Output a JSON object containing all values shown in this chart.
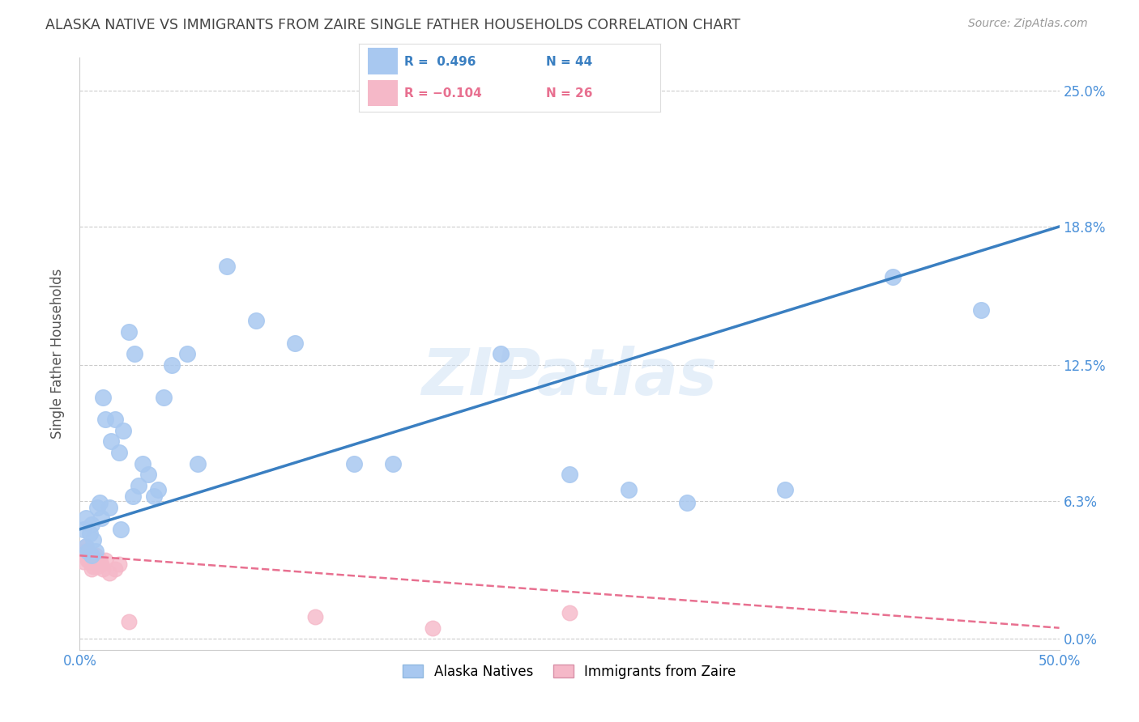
{
  "title": "ALASKA NATIVE VS IMMIGRANTS FROM ZAIRE SINGLE FATHER HOUSEHOLDS CORRELATION CHART",
  "source": "Source: ZipAtlas.com",
  "ylabel": "Single Father Households",
  "xlim": [
    0.0,
    0.5
  ],
  "ylim": [
    -0.005,
    0.265
  ],
  "ytick_positions": [
    0.0,
    0.063,
    0.125,
    0.188,
    0.25
  ],
  "ytick_labels": [
    "0.0%",
    "6.3%",
    "12.5%",
    "18.8%",
    "25.0%"
  ],
  "xtick_positions": [
    0.0,
    0.5
  ],
  "xtick_labels": [
    "0.0%",
    "50.0%"
  ],
  "watermark": "ZIPatlas",
  "blue_R": 0.496,
  "blue_N": 44,
  "pink_R": -0.104,
  "pink_N": 26,
  "blue_color": "#a8c8f0",
  "pink_color": "#f5b8c8",
  "blue_line_color": "#3a7fc1",
  "pink_line_color": "#e87090",
  "grid_color": "#cccccc",
  "background_color": "#ffffff",
  "title_color": "#444444",
  "axis_label_color": "#555555",
  "tick_label_color": "#4a90d9",
  "source_color": "#999999",
  "blue_x": [
    0.002,
    0.003,
    0.003,
    0.004,
    0.005,
    0.006,
    0.006,
    0.007,
    0.008,
    0.009,
    0.01,
    0.011,
    0.012,
    0.013,
    0.015,
    0.016,
    0.018,
    0.02,
    0.021,
    0.022,
    0.025,
    0.027,
    0.028,
    0.03,
    0.032,
    0.035,
    0.038,
    0.04,
    0.043,
    0.047,
    0.055,
    0.06,
    0.075,
    0.09,
    0.11,
    0.14,
    0.16,
    0.215,
    0.25,
    0.28,
    0.31,
    0.36,
    0.415,
    0.46
  ],
  "blue_y": [
    0.05,
    0.042,
    0.055,
    0.04,
    0.048,
    0.038,
    0.052,
    0.045,
    0.04,
    0.06,
    0.062,
    0.055,
    0.11,
    0.1,
    0.06,
    0.09,
    0.1,
    0.085,
    0.05,
    0.095,
    0.14,
    0.065,
    0.13,
    0.07,
    0.08,
    0.075,
    0.065,
    0.068,
    0.11,
    0.125,
    0.13,
    0.08,
    0.17,
    0.145,
    0.135,
    0.08,
    0.08,
    0.13,
    0.075,
    0.068,
    0.062,
    0.068,
    0.165,
    0.15
  ],
  "pink_x": [
    0.002,
    0.002,
    0.003,
    0.003,
    0.004,
    0.004,
    0.005,
    0.005,
    0.006,
    0.006,
    0.007,
    0.007,
    0.008,
    0.008,
    0.009,
    0.01,
    0.011,
    0.012,
    0.013,
    0.015,
    0.018,
    0.02,
    0.025,
    0.18,
    0.25,
    0.12
  ],
  "pink_y": [
    0.04,
    0.035,
    0.038,
    0.042,
    0.036,
    0.04,
    0.035,
    0.038,
    0.032,
    0.036,
    0.033,
    0.037,
    0.034,
    0.038,
    0.033,
    0.036,
    0.034,
    0.032,
    0.036,
    0.03,
    0.032,
    0.034,
    0.008,
    0.005,
    0.012,
    0.01
  ],
  "blue_line_x0": 0.0,
  "blue_line_y0": 0.05,
  "blue_line_x1": 0.5,
  "blue_line_y1": 0.188,
  "pink_line_x0": 0.0,
  "pink_line_y0": 0.038,
  "pink_line_x1": 0.5,
  "pink_line_y1": 0.005
}
